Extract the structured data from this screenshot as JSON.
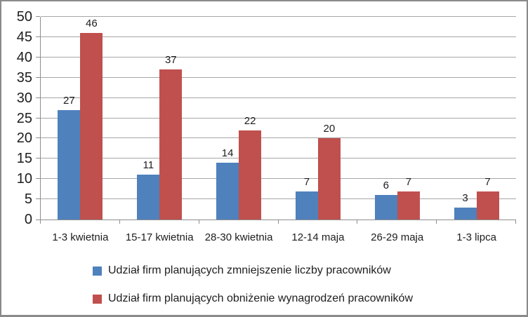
{
  "chart_data": {
    "type": "bar",
    "title": "",
    "xlabel": "",
    "ylabel": "",
    "categories": [
      "1-3 kwietnia",
      "15-17 kwietnia",
      "28-30 kwietnia",
      "12-14 maja",
      "26-29 maja",
      "1-3 lipca"
    ],
    "series": [
      {
        "name": "Udział firm planujących zmniejszenie liczby pracowników",
        "color": "#4F81BD",
        "values": [
          27,
          11,
          14,
          7,
          6,
          3
        ]
      },
      {
        "name": "Udział firm planujących obniżenie wynagrodzeń pracowników",
        "color": "#C0504D",
        "values": [
          46,
          37,
          22,
          20,
          7,
          7
        ]
      }
    ],
    "ylim": [
      0,
      50
    ],
    "y_ticks": [
      0,
      5,
      10,
      15,
      20,
      25,
      30,
      35,
      40,
      45,
      50
    ],
    "grid": true,
    "data_labels": true,
    "legend_position": "bottom"
  },
  "colors": {
    "background": "#FFFFFF",
    "grid": "#A6A6A6",
    "axis": "#8E8E8E",
    "text": "#1D1D1D",
    "frame_border": "#8A8A8A"
  }
}
